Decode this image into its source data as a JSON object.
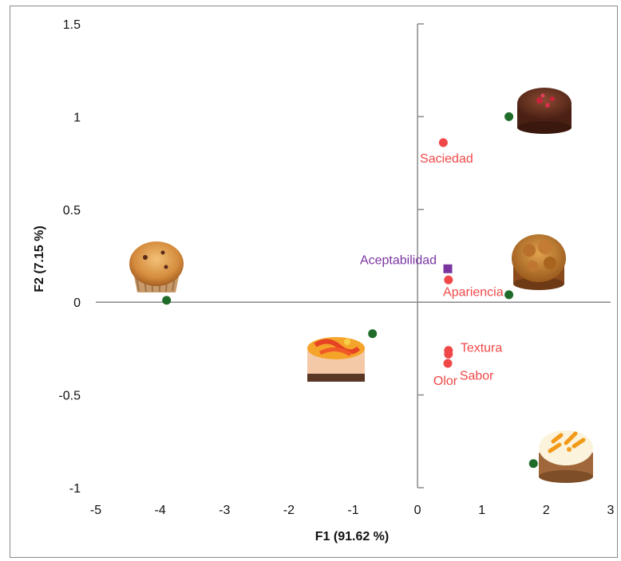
{
  "chart_data": {
    "type": "scatter",
    "title": "",
    "xlabel": "F1 (91.62 %)",
    "ylabel": "F2 (7.15 %)",
    "xlim": [
      -5,
      3
    ],
    "ylim": [
      -1,
      1.5
    ],
    "x_ticks": [
      -5,
      -4,
      -3,
      -2,
      -1,
      0,
      1,
      2,
      3
    ],
    "y_ticks": [
      -1,
      -0.5,
      0,
      0.5,
      1,
      1.5
    ],
    "y_tick_labels": [
      "-1",
      "-0.5",
      "0",
      "0.5",
      "1",
      "1.5"
    ],
    "grid": false,
    "colors": {
      "attributes": "#f04848",
      "acceptability": "#7a35a0",
      "products": "#1e6b2a",
      "axis": "#8a8a8a"
    },
    "series": [
      {
        "marker": "circle",
        "color": "#f04848",
        "points": [
          {
            "x": 0.4,
            "y": 0.86,
            "label": "Saciedad"
          },
          {
            "x": 0.48,
            "y": 0.12,
            "label": "Apariencia"
          },
          {
            "x": 0.48,
            "y": -0.26,
            "label": "Textura"
          },
          {
            "x": 0.48,
            "y": -0.28,
            "label": "Sabor"
          },
          {
            "x": 0.47,
            "y": -0.33,
            "label": "Olor"
          }
        ]
      },
      {
        "marker": "square",
        "color": "#7a35a0",
        "points": [
          {
            "x": 0.47,
            "y": 0.18,
            "label": "Aceptabilidad"
          }
        ]
      },
      {
        "marker": "circle",
        "color": "#1e6b2a",
        "points": [
          {
            "x": -3.9,
            "y": 0.01,
            "image": "muffin-image"
          },
          {
            "x": -0.7,
            "y": -0.17,
            "image": "mousse-cake-image"
          },
          {
            "x": 1.42,
            "y": 1.0,
            "image": "chocolate-cake-image"
          },
          {
            "x": 1.42,
            "y": 0.04,
            "image": "walnut-tart-image"
          },
          {
            "x": 1.8,
            "y": -0.87,
            "image": "orange-tart-image"
          }
        ]
      }
    ]
  }
}
